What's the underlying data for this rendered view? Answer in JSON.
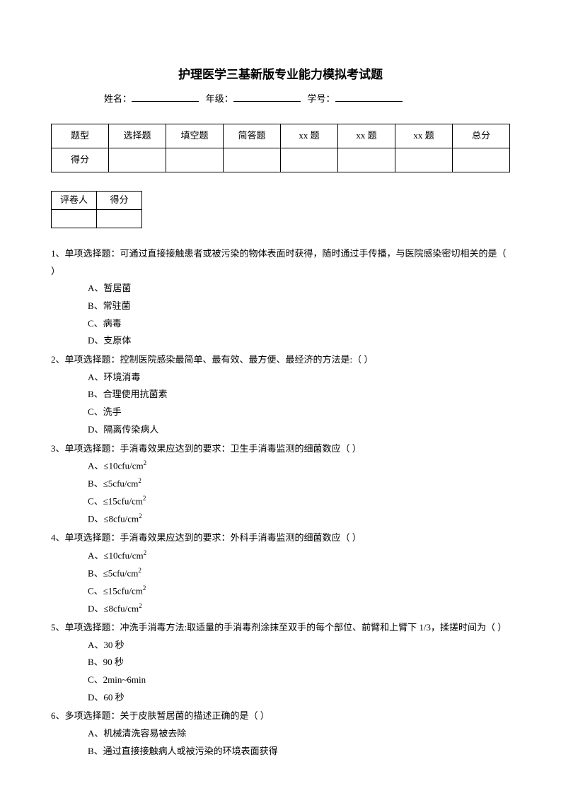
{
  "title": "护理医学三基新版专业能力模拟考试题",
  "info": {
    "name_label": "姓名：",
    "grade_label": "年级：",
    "id_label": "学号："
  },
  "score_table": {
    "row1": [
      "题型",
      "选择题",
      "填空题",
      "简答题",
      "xx 题",
      "xx 题",
      "xx 题",
      "总分"
    ],
    "row2": [
      "得分",
      "",
      "",
      "",
      "",
      "",
      "",
      ""
    ]
  },
  "grader_table": {
    "row1": [
      "评卷人",
      "得分"
    ],
    "row2": [
      "",
      ""
    ]
  },
  "questions": [
    {
      "stem": "1、单项选择题：可通过直接接触患者或被污染的物体表面时获得，随时通过手传播，与医院感染密切相关的是（  ）",
      "opts": [
        "A、暂居菌",
        "B、常驻菌",
        "C、病毒",
        "D、支原体"
      ]
    },
    {
      "stem": "2、单项选择题：控制医院感染最简单、最有效、最方便、最经济的方法是:（  ）",
      "opts": [
        "A、环境消毒",
        "B、合理使用抗菌素",
        "C、洗手",
        "D、隔离传染病人"
      ]
    },
    {
      "stem": "3、单项选择题：手消毒效果应达到的要求：卫生手消毒监测的细菌数应（  ）",
      "opts": [
        "A、≤10cfu/cm²",
        "B、≤5cfu/cm²",
        "C、≤15cfu/cm²",
        "D、≤8cfu/cm²"
      ]
    },
    {
      "stem": "4、单项选择题：手消毒效果应达到的要求：外科手消毒监测的细菌数应（  ）",
      "opts": [
        "A、≤10cfu/cm²",
        "B、≤5cfu/cm²",
        "C、≤15cfu/cm²",
        "D、≤8cfu/cm²"
      ]
    },
    {
      "stem": "5、单项选择题：冲洗手消毒方法:取适量的手消毒剂涂抹至双手的每个部位、前臂和上臂下 1/3，揉搓时间为（  ）",
      "opts": [
        "A、30 秒",
        "B、90 秒",
        "C、2min~6min",
        "D、60 秒"
      ]
    },
    {
      "stem": "6、多项选择题：关于皮肤暂居菌的描述正确的是（    ）",
      "opts": [
        "A、机械清洗容易被去除",
        "B、通过直接接触病人或被污染的环境表面获得"
      ]
    }
  ]
}
